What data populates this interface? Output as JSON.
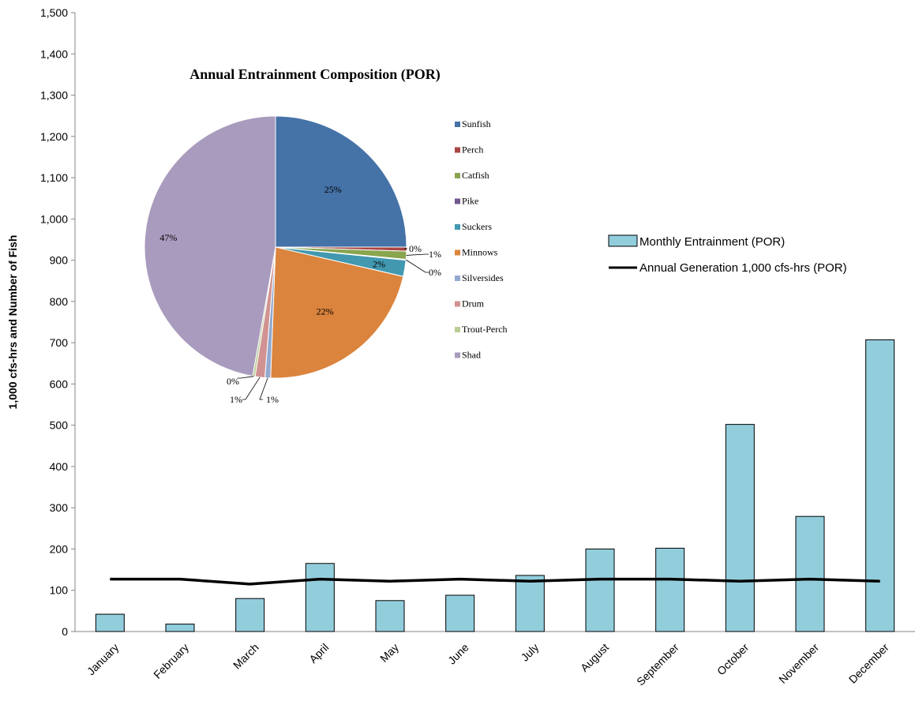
{
  "chart_data": [
    {
      "type": "bar",
      "categories": [
        "January",
        "February",
        "March",
        "April",
        "May",
        "June",
        "July",
        "August",
        "September",
        "October",
        "November",
        "December"
      ],
      "series": [
        {
          "name": "Monthly Entrainment (POR)",
          "type": "bar",
          "color": "#92CDDC",
          "values": [
            42,
            18,
            80,
            165,
            75,
            88,
            136,
            200,
            202,
            502,
            279,
            707
          ]
        },
        {
          "name": "Annual Generation 1,000 cfs-hrs (POR)",
          "type": "line",
          "color": "#000000",
          "values": [
            127,
            127,
            115,
            127,
            122,
            127,
            122,
            127,
            127,
            122,
            127,
            122
          ]
        }
      ],
      "ylabel": "1,000 cfs-hrs and Number of Fish",
      "xlabel": "",
      "ylim": [
        0,
        1500
      ],
      "yticks": [
        "0",
        "100",
        "200",
        "300",
        "400",
        "500",
        "600",
        "700",
        "800",
        "900",
        "1,000",
        "1,100",
        "1,200",
        "1,300",
        "1,400",
        "1,500"
      ],
      "legend_position": "right"
    },
    {
      "type": "pie",
      "title": "Annual Entrainment Composition (POR)",
      "categories": [
        "Sunfish",
        "Perch",
        "Catfish",
        "Pike",
        "Suckers",
        "Minnows",
        "Silversides",
        "Drum",
        "Trout-Perch",
        "Shad"
      ],
      "values": [
        25,
        0.5,
        1,
        0.1,
        2,
        22,
        0.7,
        1.2,
        0.3,
        47.2
      ],
      "labels": [
        "25%",
        "0%",
        "1%",
        "0%",
        "2%",
        "22%",
        "1%",
        "1%",
        "0%",
        "47%"
      ],
      "colors": [
        "#4572A7",
        "#AA4643",
        "#89A54E",
        "#71588F",
        "#4198AF",
        "#DB843D",
        "#93A9CF",
        "#D19392",
        "#B9CD96",
        "#A99BBD"
      ],
      "legend_position": "right"
    }
  ]
}
